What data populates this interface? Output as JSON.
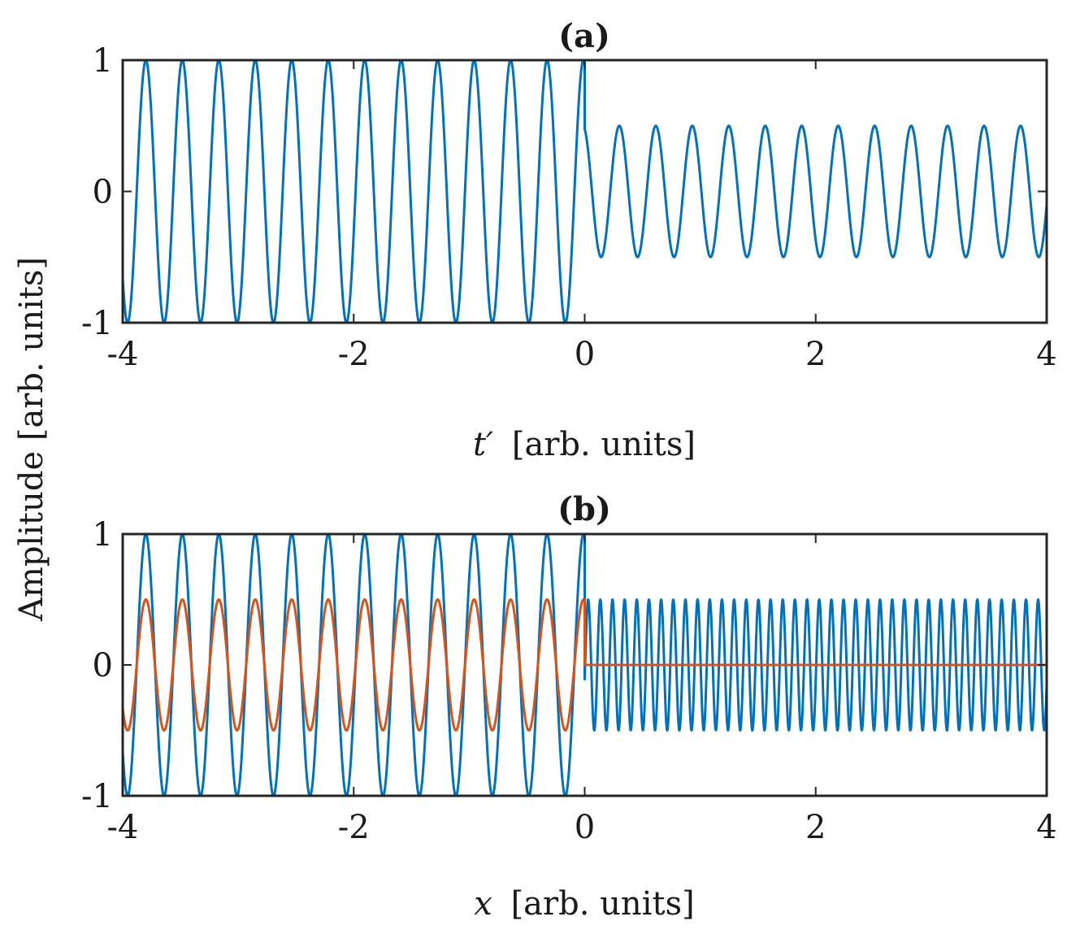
{
  "figure": {
    "shared_ylabel": "Amplitude [arb. units]"
  },
  "colors": {
    "blue": "#0072BD",
    "orange": "#D95319",
    "axes": "#262626"
  },
  "chart_data": [
    {
      "type": "line",
      "title": "(a)",
      "xlabel_var": "t′",
      "xlabel_units": "[arb. units]",
      "ylabel": "Amplitude [arb. units]",
      "xlim": [
        -4,
        4
      ],
      "ylim": [
        -1,
        1
      ],
      "xticks": [
        -4,
        -2,
        0,
        2,
        4
      ],
      "xtick_labels": [
        "-4",
        "-2",
        "0",
        "2",
        "4"
      ],
      "yticks": [
        -1,
        0,
        1
      ],
      "ytick_labels": [
        "-1",
        "0",
        "1"
      ],
      "series": [
        {
          "color": "#0072BD",
          "segments": [
            {
              "x_range": [
                -4,
                0
              ],
              "amplitude": 1.0,
              "period": 0.3158,
              "peak_at": -0.01
            },
            {
              "x_range": [
                0,
                4
              ],
              "amplitude": 0.5,
              "period": 0.3158,
              "peak_at": 0.3
            }
          ]
        }
      ]
    },
    {
      "type": "line",
      "title": "(b)",
      "xlabel_var": "x",
      "xlabel_units": "[arb. units]",
      "ylabel": "Amplitude [arb. units]",
      "xlim": [
        -4,
        4
      ],
      "ylim": [
        -1,
        1
      ],
      "xticks": [
        -4,
        -2,
        0,
        2,
        4
      ],
      "xtick_labels": [
        "-4",
        "-2",
        "0",
        "2",
        "4"
      ],
      "yticks": [
        -1,
        0,
        1
      ],
      "ytick_labels": [
        "-1",
        "0",
        "1"
      ],
      "series": [
        {
          "color": "#0072BD",
          "segments": [
            {
              "x_range": [
                -4,
                0
              ],
              "amplitude": 1.0,
              "period": 0.3158,
              "peak_at": -0.01
            },
            {
              "x_range": [
                0,
                4
              ],
              "amplitude": 0.5,
              "period": 0.1053,
              "peak_at": 0.03
            }
          ]
        },
        {
          "color": "#D95319",
          "segments": [
            {
              "x_range": [
                -4,
                0
              ],
              "amplitude": 0.5,
              "period": 0.3158,
              "peak_at": -0.01
            },
            {
              "x_range": [
                0,
                4
              ],
              "amplitude": 0.0,
              "period": 1,
              "peak_at": 0
            }
          ]
        }
      ]
    }
  ]
}
